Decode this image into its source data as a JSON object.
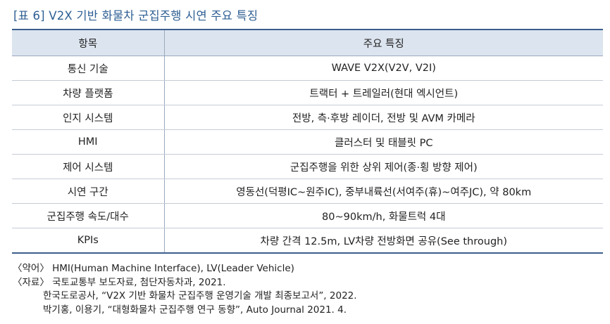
{
  "caption": "[표 6] V2X 기반 화물차 군집주행 시연 주요 특징",
  "table": {
    "headers": [
      "항목",
      "주요 특징"
    ],
    "rows": [
      [
        "통신 기술",
        "WAVE V2X(V2V, V2I)"
      ],
      [
        "차량 플랫폼",
        "트랙터 + 트레일러(현대 엑시언트)"
      ],
      [
        "인지 시스템",
        "전방, 측·후방 레이더, 전방 및 AVM 카메라"
      ],
      [
        "HMI",
        "클러스터 및 태블릿 PC"
      ],
      [
        "제어 시스템",
        "군집주행을 위한 상위 제어(종·횡 방향 제어)"
      ],
      [
        "시연 구간",
        "영동선(덕평IC~원주IC), 중부내륙선(서여주(휴)~여주JC), 약 80km"
      ],
      [
        "군집주행 속도/대수",
        "80~90km/h, 화물트럭 4대"
      ],
      [
        "KPIs",
        "차량 간격 12.5m, LV차량 전방화면 공유(See through)"
      ]
    ]
  },
  "notes": {
    "abbrev": "〈약어〉 HMI(Human Machine Interface), LV(Leader Vehicle)",
    "source_1": "〈자료〉 국토교통부 보도자료, 첨단자동차과, 2021.",
    "source_2": "한국도로공사, “V2X 기반 화물차 군집주행 운영기술 개발 최종보고서”, 2022.",
    "source_3": "박기홍, 이용기, “대형화물차 군집주행 연구 동향”, Auto Journal 2021. 4."
  }
}
